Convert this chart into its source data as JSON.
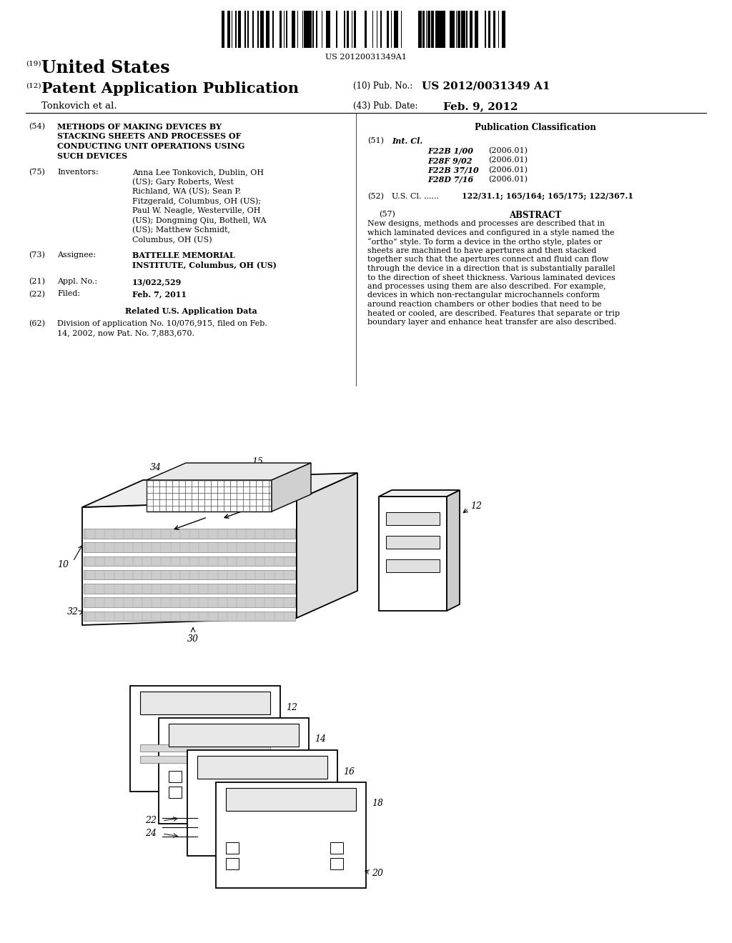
{
  "bg_color": "#ffffff",
  "barcode_text": "US 20120031349A1",
  "header_19": "(19)",
  "header_country": "United States",
  "header_12": "(12)",
  "header_type": "Patent Application Publication",
  "header_10": "(10) Pub. No.:",
  "header_pubno": "US 2012/0031349 A1",
  "header_43": "(43) Pub. Date:",
  "header_date": "Feb. 9, 2012",
  "header_inventor": "Tonkovich et al.",
  "field54_label": "(54)",
  "field54_title": "METHODS OF MAKING DEVICES BY\nSTACKING SHEETS AND PROCESSES OF\nCONDUCTING UNIT OPERATIONS USING\nSUCH DEVICES",
  "field75_label": "(75)",
  "field75_key": "Inventors:",
  "field75_val_lines": [
    "Anna Lee Tonkovich, Dublin, OH",
    "(US); Gary Roberts, West",
    "Richland, WA (US); Sean P.",
    "Fitzgerald, Columbus, OH (US);",
    "Paul W. Neagle, Westerville, OH",
    "(US); Dongming Qiu, Bothell, WA",
    "(US); Matthew Schmidt,",
    "Columbus, OH (US)"
  ],
  "field73_label": "(73)",
  "field73_key": "Assignee:",
  "field73_val_lines": [
    "BATTELLE MEMORIAL",
    "INSTITUTE, Columbus, OH (US)"
  ],
  "field21_label": "(21)",
  "field21_key": "Appl. No.:",
  "field21_val": "13/022,529",
  "field22_label": "(22)",
  "field22_key": "Filed:",
  "field22_val": "Feb. 7, 2011",
  "related_title": "Related U.S. Application Data",
  "field62_label": "(62)",
  "field62_val_lines": [
    "Division of application No. 10/076,915, filed on Feb.",
    "14, 2002, now Pat. No. 7,883,670."
  ],
  "pubclass_title": "Publication Classification",
  "field51_label": "(51)",
  "field51_key": "Int. Cl.",
  "ipc_codes": [
    [
      "F22B 1/00",
      "(2006.01)"
    ],
    [
      "F28F 9/02",
      "(2006.01)"
    ],
    [
      "F22B 37/10",
      "(2006.01)"
    ],
    [
      "F28D 7/16",
      "(2006.01)"
    ]
  ],
  "field52_label": "(52)",
  "field52_key": "U.S. Cl. ......",
  "field52_val": "122/31.1; 165/164; 165/175; 122/367.1",
  "field57_label": "(57)",
  "field57_key": "ABSTRACT",
  "abstract_lines": [
    "New designs, methods and processes are described that in",
    "which laminated devices and configured in a style named the",
    "“ortho” style. To form a device in the ortho style, plates or",
    "sheets are machined to have apertures and then stacked",
    "together such that the apertures connect and fluid can flow",
    "through the device in a direction that is substantially parallel",
    "to the direction of sheet thickness. Various laminated devices",
    "and processes using them are also described. For example,",
    "devices in which non-rectangular microchannels conform",
    "around reaction chambers or other bodies that need to be",
    "heated or cooled, are described. Features that separate or trip",
    "boundary layer and enhance heat transfer are also described."
  ]
}
